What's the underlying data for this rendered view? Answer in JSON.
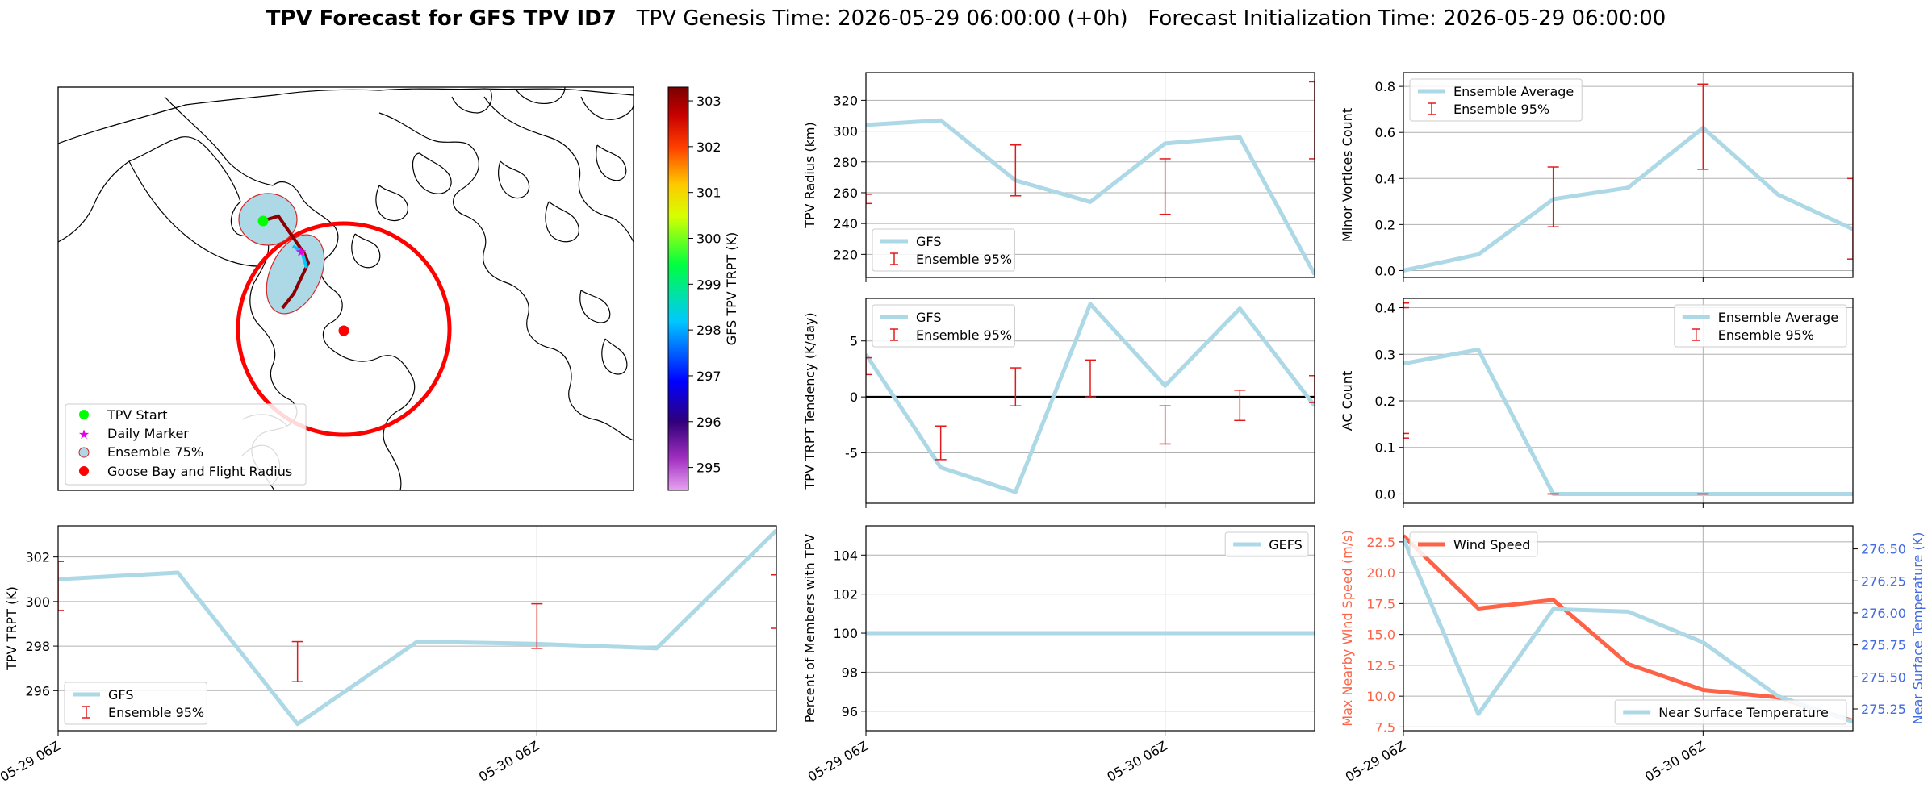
{
  "title": {
    "bold": "TPV Forecast for GFS TPV ID7",
    "rest": "   TPV Genesis Time: 2026-05-29 06:00:00 (+0h)   Forecast Initialization Time: 2026-05-29 06:00:00"
  },
  "colors": {
    "gfs": "#add8e6",
    "ens": "#e31a1c",
    "wind": "#ff6347",
    "temp_axis": "#4169e1",
    "zero": "#000000"
  },
  "map": {
    "legend": [
      "TPV Start",
      "Daily Marker",
      "Ensemble 75%",
      "Goose Bay and Flight Radius"
    ],
    "colorbar": {
      "label": "GFS TPV TRPT (K)",
      "ticks": [
        295,
        296,
        297,
        298,
        299,
        300,
        301,
        302,
        303
      ],
      "range": [
        294.5,
        303.3
      ]
    }
  },
  "date_ticks": [
    "05-29 06Z",
    "05-30 06Z"
  ],
  "chart_data": [
    {
      "id": "radius",
      "type": "line",
      "ylabel": "TPV Radius (km)",
      "yticks": [
        220,
        240,
        260,
        280,
        300,
        320
      ],
      "ylim": [
        205,
        338
      ],
      "series": [
        {
          "name": "GFS",
          "values": [
            304,
            307,
            268,
            254,
            292,
            296,
            207
          ]
        }
      ],
      "errorbars": {
        "name": "Ensemble 95%",
        "bars": [
          [
            0,
            253,
            259
          ],
          [
            2,
            258,
            291
          ],
          [
            4,
            246,
            282
          ],
          [
            6,
            282,
            332
          ]
        ]
      },
      "legend": "lower-left"
    },
    {
      "id": "minor",
      "type": "line",
      "ylabel": "Minor Vortices Count",
      "yticks": [
        0.0,
        0.2,
        0.4,
        0.6,
        0.8
      ],
      "ylim": [
        -0.03,
        0.86
      ],
      "series": [
        {
          "name": "Ensemble Average",
          "values": [
            0.0,
            0.07,
            0.31,
            0.36,
            0.62,
            0.33,
            0.18
          ]
        }
      ],
      "errorbars": {
        "name": "Ensemble 95%",
        "bars": [
          [
            2,
            0.19,
            0.45
          ],
          [
            4,
            0.44,
            0.81
          ],
          [
            6,
            0.05,
            0.4
          ]
        ]
      },
      "legend": "upper-left"
    },
    {
      "id": "tendency",
      "type": "line",
      "ylabel": "TPV TRPT Tendency (K/day)",
      "yticks": [
        -5,
        0,
        5
      ],
      "ylim": [
        -9.5,
        8.8
      ],
      "series": [
        {
          "name": "GFS",
          "values": [
            3.8,
            -6.3,
            -8.5,
            8.3,
            1.0,
            7.9,
            -0.8
          ]
        }
      ],
      "errorbars": {
        "name": "Ensemble 95%",
        "bars": [
          [
            0,
            2.0,
            3.5
          ],
          [
            1,
            -5.6,
            -2.6
          ],
          [
            2,
            -0.8,
            2.6
          ],
          [
            3,
            0.0,
            3.3
          ],
          [
            4,
            -4.2,
            -0.8
          ],
          [
            5,
            -2.1,
            0.6
          ],
          [
            6,
            -0.5,
            1.9
          ]
        ]
      },
      "hline": 0,
      "legend": "upper-left"
    },
    {
      "id": "ac",
      "type": "line",
      "ylabel": "AC Count",
      "yticks": [
        0.0,
        0.1,
        0.2,
        0.3,
        0.4
      ],
      "ylim": [
        -0.02,
        0.42
      ],
      "series": [
        {
          "name": "Ensemble Average",
          "values": [
            0.28,
            0.31,
            0.0,
            0.0,
            0.0,
            0.0,
            0.0
          ]
        }
      ],
      "errorbars": {
        "name": "Ensemble 95%",
        "bars": [
          [
            0,
            0.12,
            0.13
          ],
          [
            0,
            0.4,
            0.41
          ],
          [
            2,
            0.0,
            0.0
          ],
          [
            4,
            0.0,
            0.0
          ]
        ]
      },
      "legend": "upper-right"
    },
    {
      "id": "trpt",
      "type": "line",
      "ylabel": "TPV TRPT (K)",
      "yticks": [
        296,
        298,
        300,
        302
      ],
      "ylim": [
        294.2,
        303.4
      ],
      "series": [
        {
          "name": "GFS",
          "values": [
            301.0,
            301.3,
            294.5,
            298.2,
            298.1,
            297.9,
            303.2
          ]
        }
      ],
      "errorbars": {
        "name": "Ensemble 95%",
        "bars": [
          [
            0,
            299.6,
            301.8
          ],
          [
            2,
            296.4,
            298.2
          ],
          [
            4,
            297.9,
            299.9
          ],
          [
            6,
            298.8,
            301.2
          ]
        ]
      },
      "legend": "lower-left"
    },
    {
      "id": "percent",
      "type": "line",
      "ylabel": "Percent of Members with TPV",
      "yticks": [
        96,
        98,
        100,
        102,
        104
      ],
      "ylim": [
        95,
        105.5
      ],
      "series": [
        {
          "name": "GEFS",
          "values": [
            100,
            100,
            100,
            100,
            100,
            100,
            100
          ]
        }
      ],
      "legend": "upper-right"
    },
    {
      "id": "wind",
      "type": "line",
      "ylabel": "Max Nearby Wind Speed (m/s)",
      "ylabel2": "Near Surface Temperature (K)",
      "yticks": [
        7.5,
        10.0,
        12.5,
        15.0,
        17.5,
        20.0,
        22.5
      ],
      "ylim": [
        7.2,
        23.8
      ],
      "yticks2": [
        275.25,
        275.5,
        275.75,
        276.0,
        276.25,
        276.5
      ],
      "ylim2": [
        275.08,
        276.68
      ],
      "series": [
        {
          "name": "Wind Speed",
          "axis": "left",
          "values": [
            23.0,
            17.1,
            17.8,
            12.6,
            10.5,
            9.9,
            8.0
          ]
        },
        {
          "name": "Near Surface Temperature",
          "axis": "right",
          "values": [
            276.58,
            275.21,
            276.03,
            276.01,
            275.77,
            275.35,
            275.15
          ]
        }
      ],
      "legend": "upper-left / lower-right"
    }
  ]
}
